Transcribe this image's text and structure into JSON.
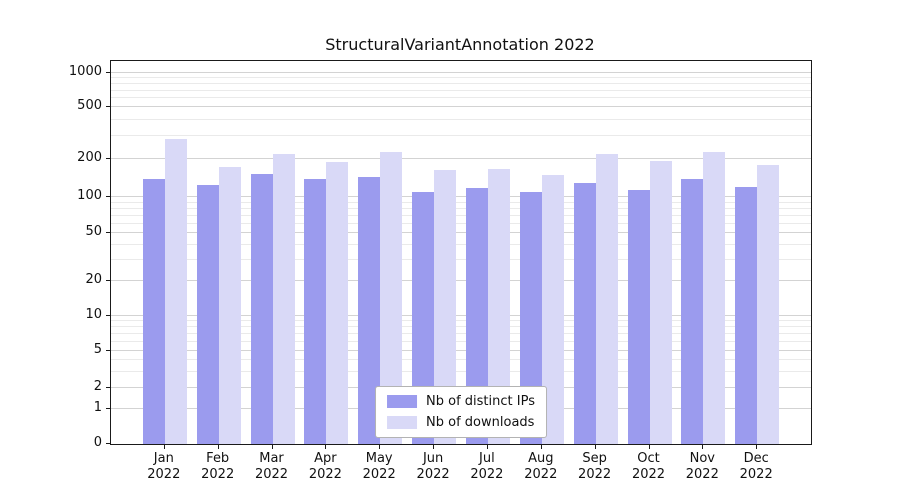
{
  "chart_data": {
    "type": "bar",
    "title": "StructuralVariantAnnotation 2022",
    "categories": [
      "Jan 2022",
      "Feb 2022",
      "Mar 2022",
      "Apr 2022",
      "May 2022",
      "Jun 2022",
      "Jul 2022",
      "Aug 2022",
      "Sep 2022",
      "Oct 2022",
      "Nov 2022",
      "Dec 2022"
    ],
    "series": [
      {
        "name": "Nb of distinct IPs",
        "color": "#9b9bee",
        "values": [
          140,
          125,
          152,
          138,
          144,
          110,
          119,
          110,
          130,
          114,
          140,
          120
        ]
      },
      {
        "name": "Nb of downloads",
        "color": "#d9d9f7",
        "values": [
          285,
          172,
          220,
          190,
          228,
          164,
          166,
          150,
          218,
          192,
          226,
          180
        ]
      }
    ],
    "yticks": [
      0,
      1,
      2,
      5,
      10,
      20,
      50,
      100,
      200,
      500,
      1000
    ],
    "yscale": "symlog",
    "ylim": [
      0,
      1300
    ],
    "xlabel": "",
    "ylabel": "",
    "grid": true,
    "legend_position": "lower center"
  }
}
